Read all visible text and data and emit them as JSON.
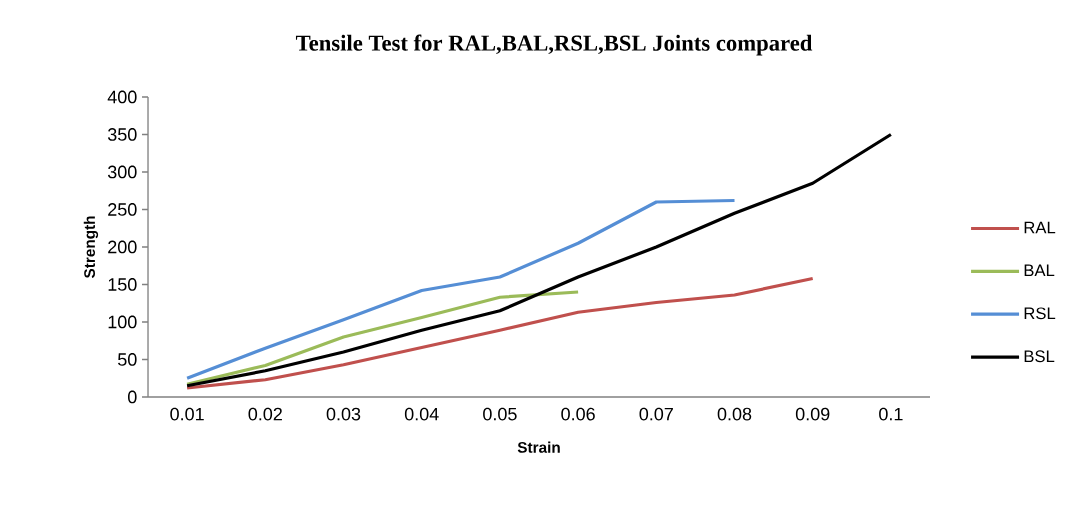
{
  "chart_data": {
    "type": "line",
    "title": "Tensile Test for RAL,BAL,RSL,BSL Joints compared",
    "xlabel": "Strain",
    "ylabel": "Strength",
    "categories": [
      "0.01",
      "0.02",
      "0.03",
      "0.04",
      "0.05",
      "0.06",
      "0.07",
      "0.08",
      "0.09",
      "0.1"
    ],
    "ylim": [
      0,
      400
    ],
    "yticks": [
      0,
      50,
      100,
      150,
      200,
      250,
      300,
      350,
      400
    ],
    "legend": "right",
    "marker": "none",
    "line_style": "solid",
    "series": [
      {
        "name": "RAL",
        "color": "#c0504d",
        "values": [
          12,
          23,
          43,
          66,
          89,
          113,
          126,
          136,
          158,
          null
        ]
      },
      {
        "name": "BAL",
        "color": "#9bbb59",
        "values": [
          17,
          42,
          80,
          106,
          133,
          140,
          null,
          null,
          null,
          null
        ]
      },
      {
        "name": "RSL",
        "color": "#558ed5",
        "values": [
          25,
          65,
          103,
          142,
          160,
          205,
          260,
          262,
          null,
          null
        ]
      },
      {
        "name": "BSL",
        "color": "#000000",
        "values": [
          15,
          35,
          60,
          89,
          115,
          160,
          200,
          245,
          285,
          350
        ]
      }
    ]
  }
}
